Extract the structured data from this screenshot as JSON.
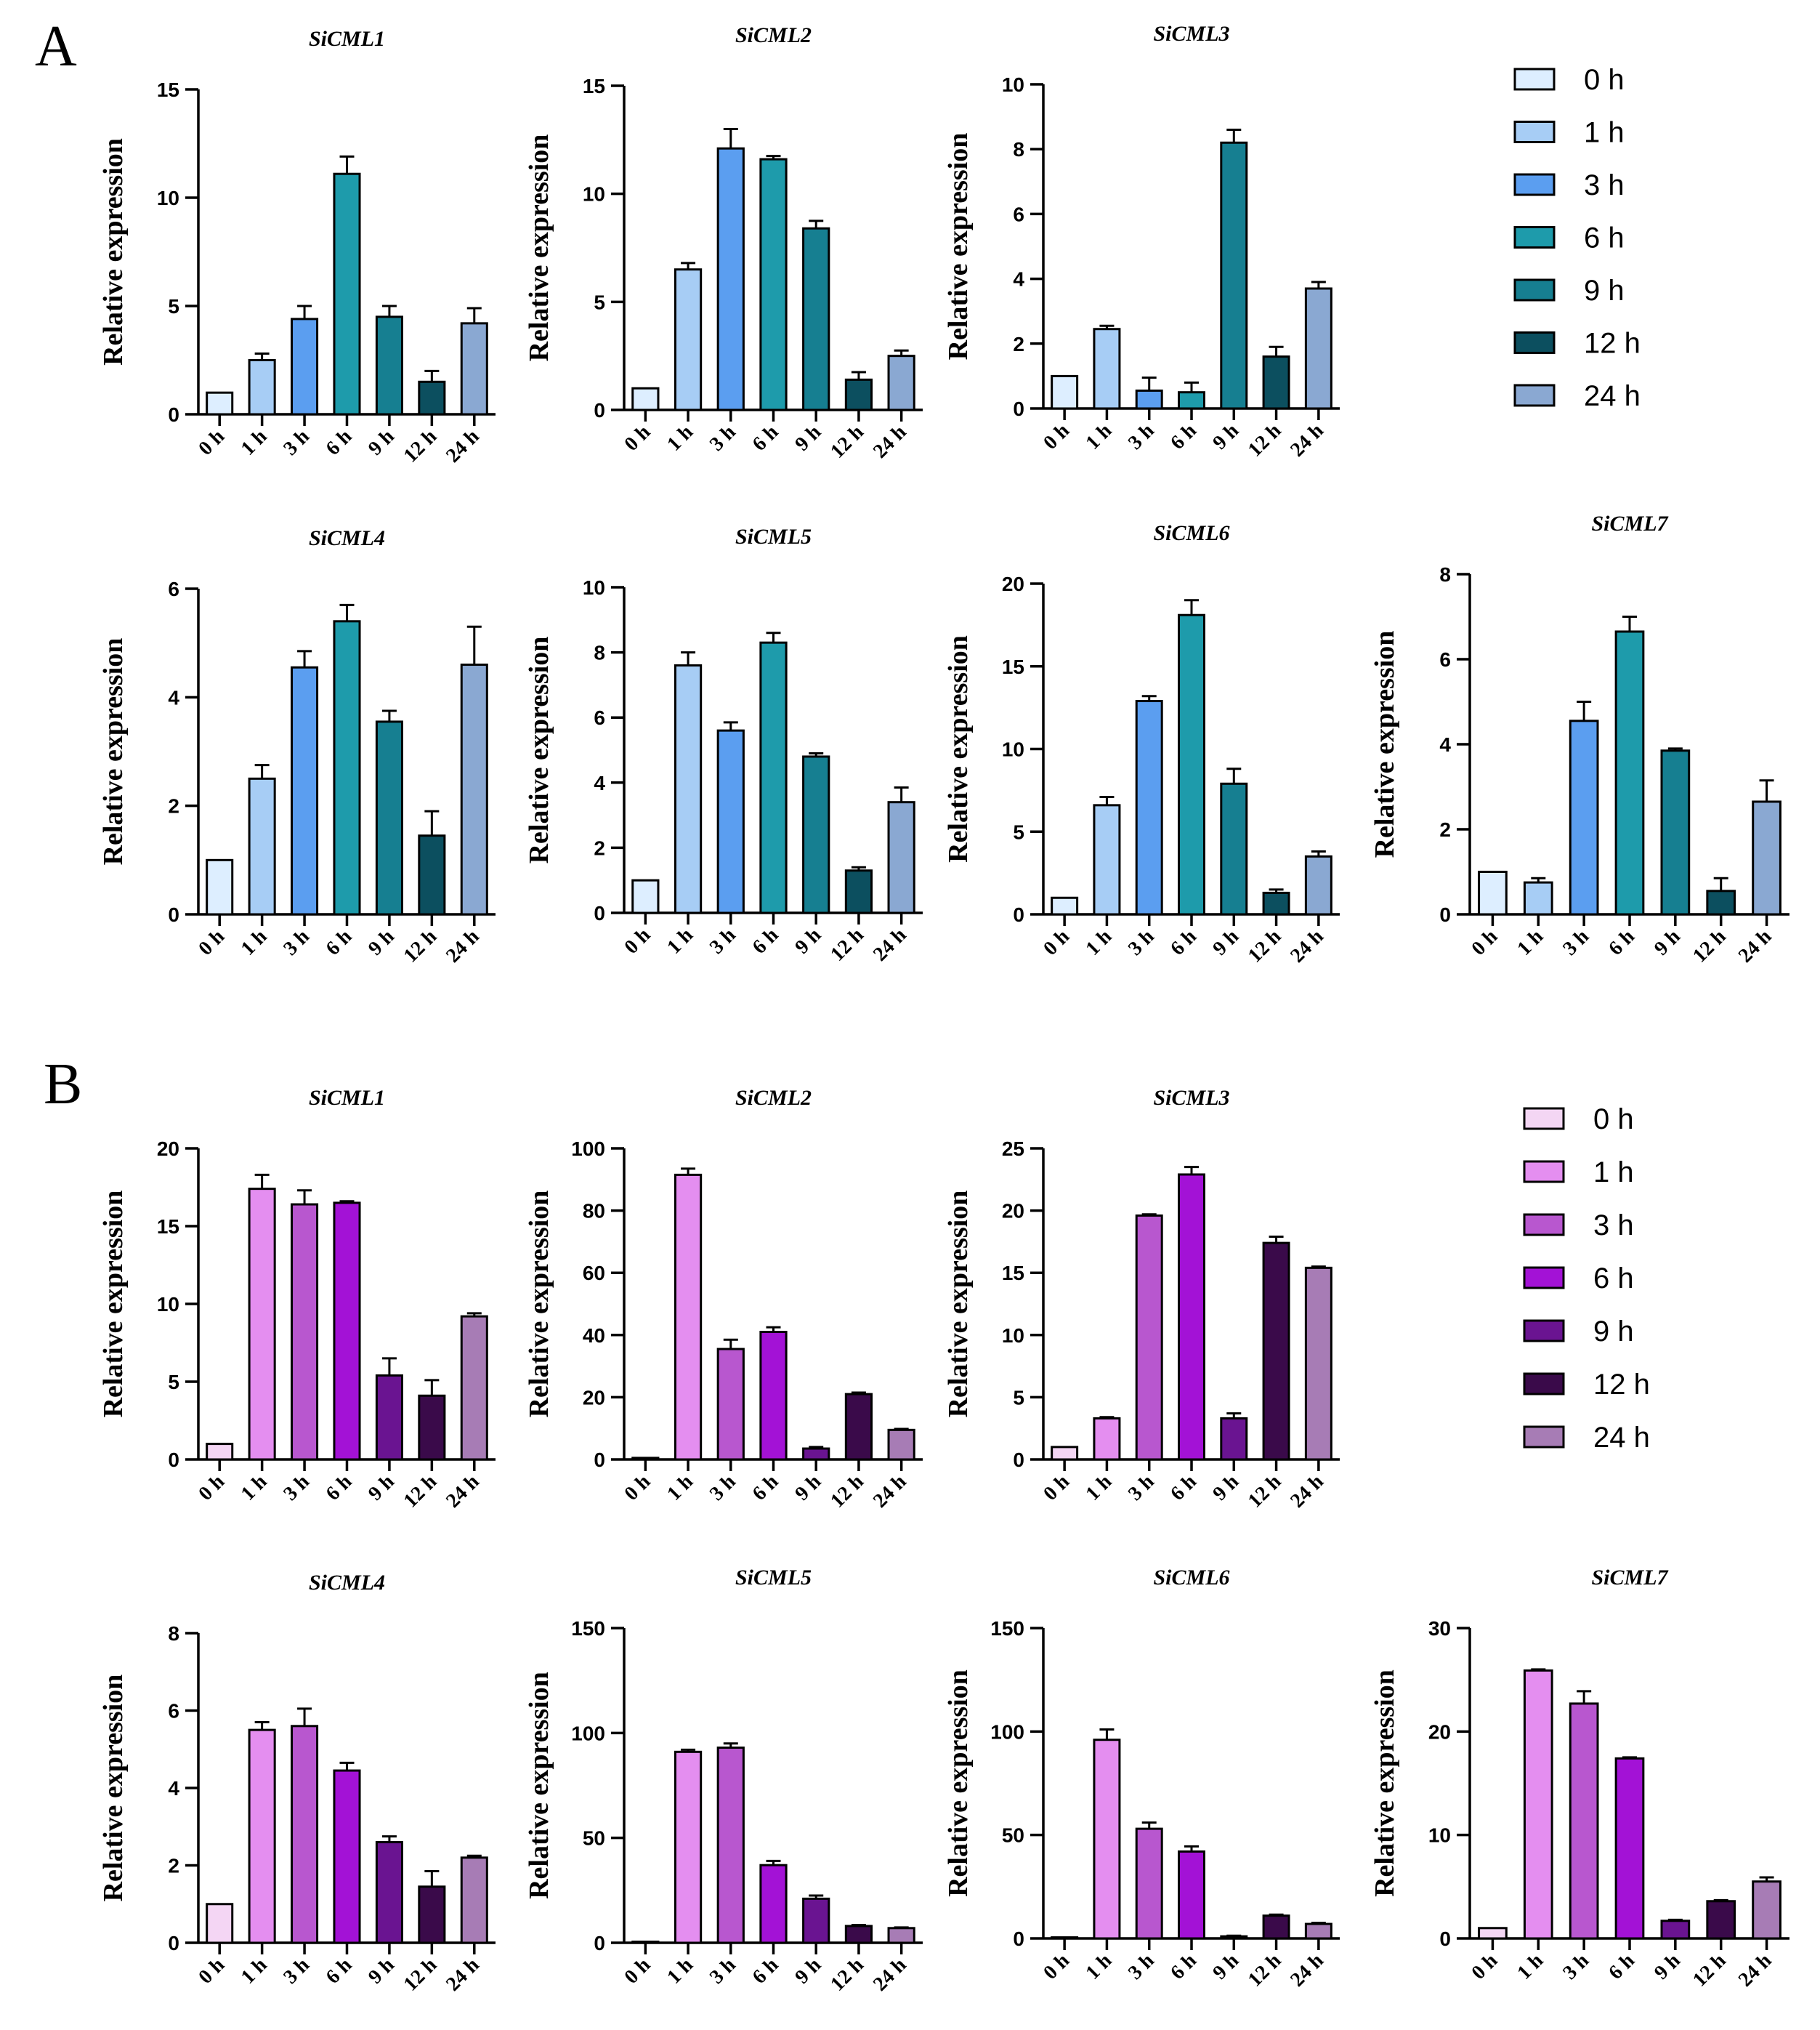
{
  "panels": [
    {
      "letter": "A",
      "palette": {
        "0 h": "#ddeeff",
        "1 h": "#a7cdf5",
        "3 h": "#5b9ef0",
        "6 h": "#1e9bab",
        "9 h": "#167f91",
        "12 h": "#0c4f5f",
        "24 h": "#8aa8d2"
      },
      "legend": [
        "0 h",
        "1 h",
        "3 h",
        "6 h",
        "9 h",
        "12 h",
        "24 h"
      ]
    },
    {
      "letter": "B",
      "palette": {
        "0 h": "#f4d6f4",
        "1 h": "#e48ef0",
        "3 h": "#b857cf",
        "6 h": "#a312d6",
        "9 h": "#6a1491",
        "12 h": "#3a0a4a",
        "24 h": "#a77cb5"
      },
      "legend": [
        "0 h",
        "1 h",
        "3 h",
        "6 h",
        "9 h",
        "12 h",
        "24 h"
      ]
    }
  ],
  "chart_data": [
    {
      "panel": "A",
      "type": "bar",
      "title": "SiCML1",
      "ylabel": "Relative expression",
      "categories": [
        "0 h",
        "1 h",
        "3 h",
        "6 h",
        "9 h",
        "12 h",
        "24 h"
      ],
      "values": [
        1,
        2.5,
        4.4,
        11.1,
        4.5,
        1.5,
        4.2
      ],
      "errors": [
        0,
        0.3,
        0.6,
        0.8,
        0.5,
        0.5,
        0.7
      ],
      "ylim": [
        0,
        15
      ],
      "yticks": [
        "0",
        "5",
        "10",
        "15"
      ]
    },
    {
      "panel": "A",
      "type": "bar",
      "title": "SiCML2",
      "ylabel": "Relative expression",
      "categories": [
        "0 h",
        "1 h",
        "3 h",
        "6 h",
        "9 h",
        "12 h",
        "24 h"
      ],
      "values": [
        1,
        6.5,
        12.1,
        11.6,
        8.4,
        1.4,
        2.5
      ],
      "errors": [
        0,
        0.3,
        0.9,
        0.15,
        0.35,
        0.35,
        0.25
      ],
      "ylim": [
        0,
        15
      ],
      "yticks": [
        "0",
        "5",
        "10",
        "15"
      ]
    },
    {
      "panel": "A",
      "type": "bar",
      "title": "SiCML3",
      "ylabel": "Relative expression",
      "categories": [
        "0 h",
        "1 h",
        "3 h",
        "6 h",
        "9 h",
        "12 h",
        "24 h"
      ],
      "values": [
        1,
        2.45,
        0.55,
        0.5,
        8.2,
        1.6,
        3.7
      ],
      "errors": [
        0,
        0.1,
        0.4,
        0.3,
        0.4,
        0.3,
        0.2
      ],
      "ylim": [
        0,
        10
      ],
      "yticks": [
        "0",
        "2",
        "4",
        "6",
        "8",
        "10"
      ]
    },
    {
      "panel": "A",
      "type": "bar",
      "title": "SiCML4",
      "ylabel": "Relative expression",
      "categories": [
        "0 h",
        "1 h",
        "3 h",
        "6 h",
        "9 h",
        "12 h",
        "24 h"
      ],
      "values": [
        1,
        2.5,
        4.55,
        5.4,
        3.55,
        1.45,
        4.6
      ],
      "errors": [
        0,
        0.25,
        0.3,
        0.3,
        0.2,
        0.45,
        0.7
      ],
      "ylim": [
        0,
        6
      ],
      "yticks": [
        "0",
        "2",
        "4",
        "6"
      ]
    },
    {
      "panel": "A",
      "type": "bar",
      "title": "SiCML5",
      "ylabel": "Relative expression",
      "categories": [
        "0 h",
        "1 h",
        "3 h",
        "6 h",
        "9 h",
        "12 h",
        "24 h"
      ],
      "values": [
        1,
        7.6,
        5.6,
        8.3,
        4.8,
        1.3,
        3.4
      ],
      "errors": [
        0,
        0.4,
        0.25,
        0.3,
        0.1,
        0.1,
        0.45
      ],
      "ylim": [
        0,
        10
      ],
      "yticks": [
        "0",
        "2",
        "4",
        "6",
        "8",
        "10"
      ]
    },
    {
      "panel": "A",
      "type": "bar",
      "title": "SiCML6",
      "ylabel": "Relative expression",
      "categories": [
        "0 h",
        "1 h",
        "3 h",
        "6 h",
        "9 h",
        "12 h",
        "24 h"
      ],
      "values": [
        1,
        6.6,
        12.9,
        18.1,
        7.9,
        1.3,
        3.5
      ],
      "errors": [
        0,
        0.5,
        0.3,
        0.9,
        0.9,
        0.2,
        0.3
      ],
      "ylim": [
        0,
        20
      ],
      "yticks": [
        "0",
        "5",
        "10",
        "15",
        "20"
      ]
    },
    {
      "panel": "A",
      "type": "bar",
      "title": "SiCML7",
      "ylabel": "Relative expression",
      "categories": [
        "0 h",
        "1 h",
        "3 h",
        "6 h",
        "9 h",
        "12 h",
        "24 h"
      ],
      "values": [
        1,
        0.75,
        4.55,
        6.65,
        3.85,
        0.55,
        2.65
      ],
      "errors": [
        0,
        0.1,
        0.45,
        0.35,
        0.05,
        0.3,
        0.5
      ],
      "ylim": [
        0,
        8
      ],
      "yticks": [
        "0",
        "2",
        "4",
        "6",
        "8"
      ]
    },
    {
      "panel": "B",
      "type": "bar",
      "title": "SiCML1",
      "ylabel": "Relative expression",
      "categories": [
        "0 h",
        "1 h",
        "3 h",
        "6 h",
        "9 h",
        "12 h",
        "24 h"
      ],
      "values": [
        1,
        17.4,
        16.4,
        16.5,
        5.4,
        4.1,
        9.2
      ],
      "errors": [
        0,
        0.9,
        0.9,
        0.1,
        1.1,
        1.0,
        0.2
      ],
      "ylim": [
        0,
        20
      ],
      "yticks": [
        "0",
        "5",
        "10",
        "15",
        "20"
      ]
    },
    {
      "panel": "B",
      "type": "bar",
      "title": "SiCML2",
      "ylabel": "Relative expression",
      "categories": [
        "0 h",
        "1 h",
        "3 h",
        "6 h",
        "9 h",
        "12 h",
        "24 h"
      ],
      "values": [
        0.5,
        91.5,
        35.5,
        41,
        3.5,
        21,
        9.5
      ],
      "errors": [
        0,
        2,
        3,
        1.5,
        0.5,
        0.5,
        0.3
      ],
      "ylim": [
        0,
        100
      ],
      "yticks": [
        "0",
        "20",
        "40",
        "60",
        "80",
        "100"
      ]
    },
    {
      "panel": "B",
      "type": "bar",
      "title": "SiCML3",
      "ylabel": "Relative expression",
      "categories": [
        "0 h",
        "1 h",
        "3 h",
        "6 h",
        "9 h",
        "12 h",
        "24 h"
      ],
      "values": [
        1,
        3.3,
        19.6,
        22.9,
        3.3,
        17.4,
        15.4
      ],
      "errors": [
        0,
        0.1,
        0.1,
        0.6,
        0.4,
        0.5,
        0.1
      ],
      "ylim": [
        0,
        25
      ],
      "yticks": [
        "0",
        "5",
        "10",
        "15",
        "20",
        "25"
      ]
    },
    {
      "panel": "B",
      "type": "bar",
      "title": "SiCML4",
      "ylabel": "Relative expression",
      "categories": [
        "0 h",
        "1 h",
        "3 h",
        "6 h",
        "9 h",
        "12 h",
        "24 h"
      ],
      "values": [
        1,
        5.5,
        5.6,
        4.45,
        2.6,
        1.45,
        2.2
      ],
      "errors": [
        0,
        0.2,
        0.45,
        0.2,
        0.15,
        0.4,
        0.05
      ],
      "ylim": [
        0,
        8
      ],
      "yticks": [
        "0",
        "2",
        "4",
        "6",
        "8"
      ]
    },
    {
      "panel": "B",
      "type": "bar",
      "title": "SiCML5",
      "ylabel": "Relative expression",
      "categories": [
        "0 h",
        "1 h",
        "3 h",
        "6 h",
        "9 h",
        "12 h",
        "24 h"
      ],
      "values": [
        0.5,
        91,
        93,
        37,
        21,
        8,
        7
      ],
      "errors": [
        0,
        1,
        2,
        2,
        1.5,
        0.5,
        0.3
      ],
      "ylim": [
        0,
        150
      ],
      "yticks": [
        "0",
        "50",
        "100",
        "150"
      ]
    },
    {
      "panel": "B",
      "type": "bar",
      "title": "SiCML6",
      "ylabel": "Relative expression",
      "categories": [
        "0 h",
        "1 h",
        "3 h",
        "6 h",
        "9 h",
        "12 h",
        "24 h"
      ],
      "values": [
        0.5,
        96,
        53,
        42,
        1,
        11,
        7
      ],
      "errors": [
        0,
        5,
        3,
        2.5,
        0.3,
        0.5,
        0.5
      ],
      "ylim": [
        0,
        150
      ],
      "yticks": [
        "0",
        "50",
        "100",
        "150"
      ]
    },
    {
      "panel": "B",
      "type": "bar",
      "title": "SiCML7",
      "ylabel": "Relative expression",
      "categories": [
        "0 h",
        "1 h",
        "3 h",
        "6 h",
        "9 h",
        "12 h",
        "24 h"
      ],
      "values": [
        1,
        25.9,
        22.7,
        17.4,
        1.7,
        3.6,
        5.5
      ],
      "errors": [
        0,
        0.1,
        1.2,
        0.1,
        0.1,
        0.1,
        0.4
      ],
      "ylim": [
        0,
        30
      ],
      "yticks": [
        "0",
        "10",
        "20",
        "30"
      ]
    }
  ]
}
